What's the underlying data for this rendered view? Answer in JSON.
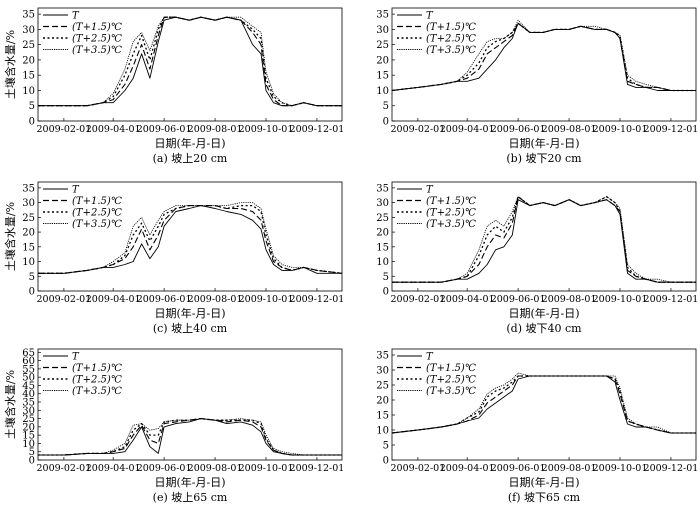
{
  "figure": {
    "panels": [
      {
        "id": "a",
        "caption": "(a) 坡上20 cm"
      },
      {
        "id": "b",
        "caption": "(b) 坡下20 cm"
      },
      {
        "id": "c",
        "caption": "(c) 坡上40 cm"
      },
      {
        "id": "d",
        "caption": "(d) 坡下40 cm"
      },
      {
        "id": "e",
        "caption": "(e) 坡上65 cm"
      },
      {
        "id": "f",
        "caption": "(f) 坡下65 cm"
      }
    ]
  },
  "colors": {
    "line": "#000000",
    "background": "#ffffff"
  },
  "chart_data": [
    {
      "type": "line",
      "caption": "(a) 坡上20 cm",
      "xlabel": "日期(年-月-日)",
      "ylabel": "土壤含水量/%",
      "x_ticks": [
        "2009-02-01",
        "2009-04-01",
        "2009-06-01",
        "2009-08-01",
        "2009-10-01",
        "2009-12-01"
      ],
      "y_ticks": [
        0,
        5,
        10,
        15,
        20,
        25,
        30,
        35
      ],
      "xlim": [
        "2009-01-01",
        "2009-12-31"
      ],
      "ylim": [
        0,
        37
      ],
      "grid": false,
      "legend_position": "top-left",
      "x": [
        "2009-01-01",
        "2009-02-01",
        "2009-03-01",
        "2009-03-20",
        "2009-04-01",
        "2009-04-15",
        "2009-04-25",
        "2009-05-05",
        "2009-05-15",
        "2009-05-25",
        "2009-06-01",
        "2009-06-15",
        "2009-07-01",
        "2009-07-15",
        "2009-08-01",
        "2009-08-15",
        "2009-09-01",
        "2009-09-15",
        "2009-09-25",
        "2009-10-01",
        "2009-10-10",
        "2009-10-20",
        "2009-11-01",
        "2009-11-15",
        "2009-12-01",
        "2009-12-31"
      ],
      "series": [
        {
          "name": "T",
          "values": [
            5,
            5,
            5,
            6,
            6,
            10,
            14,
            22,
            14,
            26,
            33,
            34,
            33,
            34,
            33,
            34,
            33,
            25,
            22,
            10,
            6,
            5,
            5,
            6,
            5,
            5
          ]
        },
        {
          "name": "(T+1.5)℃",
          "values": [
            5,
            5,
            5,
            6,
            7,
            12,
            18,
            25,
            17,
            28,
            34,
            34,
            33,
            34,
            33,
            34,
            33,
            29,
            25,
            12,
            7,
            5,
            5,
            6,
            5,
            5
          ]
        },
        {
          "name": "(T+2.5)℃",
          "values": [
            5,
            5,
            5,
            6,
            8,
            15,
            22,
            28,
            20,
            30,
            34,
            34,
            33,
            34,
            33,
            34,
            33,
            30,
            27,
            14,
            8,
            6,
            5,
            6,
            5,
            5
          ]
        },
        {
          "name": "(T+3.5)℃",
          "values": [
            5,
            5,
            5,
            6,
            9,
            17,
            26,
            29,
            23,
            31,
            34,
            34,
            33,
            34,
            33,
            34,
            34,
            31,
            29,
            16,
            9,
            6,
            5,
            6,
            5,
            5
          ]
        }
      ]
    },
    {
      "type": "line",
      "caption": "(b) 坡下20 cm",
      "xlabel": "日期(年-月-日)",
      "ylabel": "",
      "x_ticks": [
        "2009-02-01",
        "2009-04-01",
        "2009-06-01",
        "2009-08-01",
        "2009-10-01",
        "2009-12-01"
      ],
      "y_ticks": [
        0,
        5,
        10,
        15,
        20,
        25,
        30,
        35
      ],
      "xlim": [
        "2009-01-01",
        "2009-12-31"
      ],
      "ylim": [
        0,
        37
      ],
      "grid": false,
      "legend_position": "top-left",
      "x": [
        "2009-01-01",
        "2009-02-01",
        "2009-03-01",
        "2009-03-20",
        "2009-04-01",
        "2009-04-15",
        "2009-04-25",
        "2009-05-05",
        "2009-05-15",
        "2009-05-25",
        "2009-06-01",
        "2009-06-15",
        "2009-07-01",
        "2009-07-15",
        "2009-08-01",
        "2009-08-15",
        "2009-09-01",
        "2009-09-15",
        "2009-09-25",
        "2009-10-01",
        "2009-10-10",
        "2009-10-20",
        "2009-11-01",
        "2009-11-15",
        "2009-12-01",
        "2009-12-31"
      ],
      "series": [
        {
          "name": "T",
          "values": [
            10,
            11,
            12,
            13,
            13,
            14,
            17,
            20,
            24,
            27,
            32,
            29,
            29,
            30,
            30,
            31,
            30,
            30,
            29,
            27,
            12,
            11,
            11,
            10,
            10,
            10
          ]
        },
        {
          "name": "(T+1.5)℃",
          "values": [
            10,
            11,
            12,
            13,
            14,
            17,
            22,
            24,
            26,
            28,
            32,
            29,
            29,
            30,
            30,
            31,
            30,
            30,
            29,
            27,
            13,
            12,
            11,
            11,
            10,
            10
          ]
        },
        {
          "name": "(T+2.5)℃",
          "values": [
            10,
            11,
            12,
            13,
            15,
            19,
            24,
            26,
            27,
            29,
            32,
            29,
            29,
            30,
            30,
            31,
            30,
            30,
            29,
            28,
            14,
            12,
            11,
            11,
            10,
            10
          ]
        },
        {
          "name": "(T+3.5)℃",
          "values": [
            10,
            11,
            12,
            13,
            16,
            22,
            26,
            27,
            27,
            29,
            33,
            29,
            29,
            30,
            30,
            31,
            31,
            30,
            29,
            28,
            15,
            13,
            12,
            11,
            10,
            10
          ]
        }
      ]
    },
    {
      "type": "line",
      "caption": "(c) 坡上40 cm",
      "xlabel": "日期(年-月-日)",
      "ylabel": "土壤含水量/%",
      "x_ticks": [
        "2009-02-01",
        "2009-04-01",
        "2009-06-01",
        "2009-08-01",
        "2009-10-01",
        "2009-12-01"
      ],
      "y_ticks": [
        0,
        5,
        10,
        15,
        20,
        25,
        30,
        35
      ],
      "xlim": [
        "2009-01-01",
        "2009-12-31"
      ],
      "ylim": [
        0,
        37
      ],
      "grid": false,
      "legend_position": "top-left",
      "x": [
        "2009-01-01",
        "2009-02-01",
        "2009-03-01",
        "2009-03-20",
        "2009-04-01",
        "2009-04-15",
        "2009-04-25",
        "2009-05-05",
        "2009-05-15",
        "2009-05-25",
        "2009-06-01",
        "2009-06-15",
        "2009-07-01",
        "2009-07-15",
        "2009-08-01",
        "2009-08-15",
        "2009-09-01",
        "2009-09-15",
        "2009-09-25",
        "2009-10-01",
        "2009-10-10",
        "2009-10-20",
        "2009-11-01",
        "2009-11-15",
        "2009-12-01",
        "2009-12-31"
      ],
      "series": [
        {
          "name": "T",
          "values": [
            6,
            6,
            7,
            8,
            8,
            9,
            10,
            16,
            11,
            15,
            22,
            27,
            28,
            29,
            28,
            27,
            26,
            24,
            21,
            14,
            9,
            7,
            7,
            8,
            6,
            6
          ]
        },
        {
          "name": "(T+1.5)℃",
          "values": [
            6,
            6,
            7,
            8,
            9,
            11,
            15,
            21,
            14,
            19,
            24,
            28,
            29,
            29,
            29,
            28,
            28,
            27,
            24,
            17,
            10,
            8,
            7,
            8,
            7,
            6
          ]
        },
        {
          "name": "(T+2.5)℃",
          "values": [
            6,
            6,
            7,
            8,
            9,
            12,
            19,
            23,
            17,
            22,
            26,
            28,
            29,
            29,
            29,
            28,
            29,
            29,
            27,
            19,
            11,
            8,
            7,
            8,
            7,
            6
          ]
        },
        {
          "name": "(T+3.5)℃",
          "values": [
            6,
            6,
            7,
            8,
            10,
            13,
            22,
            25,
            19,
            24,
            27,
            29,
            29,
            29,
            29,
            29,
            30,
            30,
            28,
            21,
            12,
            9,
            8,
            8,
            7,
            6
          ]
        }
      ]
    },
    {
      "type": "line",
      "caption": "(d) 坡下40 cm",
      "xlabel": "日期(年-月-日)",
      "ylabel": "",
      "x_ticks": [
        "2009-02-01",
        "2009-04-01",
        "2009-06-01",
        "2009-08-01",
        "2009-10-01",
        "2009-12-01"
      ],
      "y_ticks": [
        0,
        5,
        10,
        15,
        20,
        25,
        30,
        35
      ],
      "xlim": [
        "2009-01-01",
        "2009-12-31"
      ],
      "ylim": [
        0,
        37
      ],
      "grid": false,
      "legend_position": "top-left",
      "x": [
        "2009-01-01",
        "2009-02-01",
        "2009-03-01",
        "2009-03-20",
        "2009-04-01",
        "2009-04-15",
        "2009-04-25",
        "2009-05-05",
        "2009-05-15",
        "2009-05-25",
        "2009-06-01",
        "2009-06-15",
        "2009-07-01",
        "2009-07-15",
        "2009-08-01",
        "2009-08-15",
        "2009-09-01",
        "2009-09-15",
        "2009-09-25",
        "2009-10-01",
        "2009-10-10",
        "2009-10-20",
        "2009-11-01",
        "2009-11-15",
        "2009-12-01",
        "2009-12-31"
      ],
      "series": [
        {
          "name": "T",
          "values": [
            3,
            3,
            3,
            4,
            4,
            6,
            9,
            14,
            15,
            19,
            31,
            29,
            30,
            29,
            31,
            29,
            30,
            31,
            29,
            26,
            6,
            4,
            4,
            3,
            3,
            3
          ]
        },
        {
          "name": "(T+1.5)℃",
          "values": [
            3,
            3,
            3,
            4,
            5,
            9,
            15,
            19,
            18,
            23,
            32,
            29,
            30,
            29,
            31,
            29,
            30,
            31,
            29,
            27,
            7,
            5,
            4,
            3,
            3,
            3
          ]
        },
        {
          "name": "(T+2.5)℃",
          "values": [
            3,
            3,
            3,
            4,
            5,
            12,
            19,
            22,
            20,
            25,
            32,
            29,
            30,
            29,
            31,
            29,
            30,
            32,
            30,
            27,
            8,
            5,
            4,
            3,
            3,
            3
          ]
        },
        {
          "name": "(T+3.5)℃",
          "values": [
            3,
            3,
            3,
            4,
            6,
            14,
            22,
            24,
            22,
            27,
            32,
            29,
            30,
            29,
            31,
            29,
            30,
            32,
            30,
            28,
            9,
            6,
            4,
            4,
            3,
            3
          ]
        }
      ]
    },
    {
      "type": "line",
      "caption": "(e) 坡上65 cm",
      "xlabel": "日期(年-月-日)",
      "ylabel": "土壤含水量/%",
      "x_ticks": [
        "2009-02-01",
        "2009-04-01",
        "2009-06-01",
        "2009-08-01",
        "2009-10-01",
        "2009-12-01"
      ],
      "y_ticks": [
        0,
        5,
        10,
        15,
        20,
        25,
        30,
        35,
        40,
        45,
        50,
        55,
        60,
        65
      ],
      "xlim": [
        "2009-01-01",
        "2009-12-31"
      ],
      "ylim": [
        0,
        67
      ],
      "grid": false,
      "legend_position": "top-left",
      "x": [
        "2009-01-01",
        "2009-02-01",
        "2009-03-01",
        "2009-03-20",
        "2009-04-01",
        "2009-04-15",
        "2009-04-25",
        "2009-05-05",
        "2009-05-15",
        "2009-05-25",
        "2009-06-01",
        "2009-06-15",
        "2009-07-01",
        "2009-07-15",
        "2009-08-01",
        "2009-08-15",
        "2009-09-01",
        "2009-09-15",
        "2009-09-25",
        "2009-10-01",
        "2009-10-10",
        "2009-10-20",
        "2009-11-01",
        "2009-11-15",
        "2009-12-01",
        "2009-12-31"
      ],
      "series": [
        {
          "name": "T",
          "values": [
            3,
            3,
            4,
            4,
            4,
            5,
            12,
            20,
            8,
            4,
            20,
            22,
            23,
            25,
            24,
            22,
            23,
            21,
            17,
            10,
            5,
            4,
            3,
            3,
            3,
            3
          ]
        },
        {
          "name": "(T+1.5)℃",
          "values": [
            3,
            3,
            4,
            4,
            5,
            7,
            15,
            21,
            12,
            10,
            22,
            23,
            24,
            25,
            24,
            23,
            24,
            23,
            20,
            12,
            6,
            4,
            3,
            3,
            3,
            3
          ]
        },
        {
          "name": "(T+2.5)℃",
          "values": [
            3,
            3,
            4,
            4,
            5,
            8,
            18,
            22,
            15,
            15,
            23,
            24,
            24,
            25,
            24,
            24,
            24,
            24,
            22,
            13,
            6,
            4,
            3,
            3,
            3,
            3
          ]
        },
        {
          "name": "(T+3.5)℃",
          "values": [
            3,
            3,
            4,
            4,
            6,
            10,
            21,
            22,
            18,
            19,
            23,
            24,
            24,
            25,
            24,
            24,
            25,
            24,
            23,
            15,
            7,
            5,
            4,
            3,
            3,
            3
          ]
        }
      ]
    },
    {
      "type": "line",
      "caption": "(f) 坡下65 cm",
      "xlabel": "日期(年-月-日)",
      "ylabel": "",
      "x_ticks": [
        "2009-02-01",
        "2009-04-01",
        "2009-06-01",
        "2009-08-01",
        "2009-10-01",
        "2009-12-01"
      ],
      "y_ticks": [
        0,
        5,
        10,
        15,
        20,
        25,
        30,
        35
      ],
      "xlim": [
        "2009-01-01",
        "2009-12-31"
      ],
      "ylim": [
        0,
        37
      ],
      "grid": false,
      "legend_position": "top-left",
      "x": [
        "2009-01-01",
        "2009-02-01",
        "2009-03-01",
        "2009-03-20",
        "2009-04-01",
        "2009-04-15",
        "2009-04-25",
        "2009-05-05",
        "2009-05-15",
        "2009-05-25",
        "2009-06-01",
        "2009-06-15",
        "2009-07-01",
        "2009-07-15",
        "2009-08-01",
        "2009-08-15",
        "2009-09-01",
        "2009-09-15",
        "2009-09-25",
        "2009-10-01",
        "2009-10-10",
        "2009-10-20",
        "2009-11-01",
        "2009-11-15",
        "2009-12-01",
        "2009-12-31"
      ],
      "series": [
        {
          "name": "T",
          "values": [
            9,
            10,
            11,
            12,
            13,
            14,
            17,
            19,
            21,
            23,
            27,
            28,
            28,
            28,
            28,
            28,
            28,
            28,
            26,
            20,
            12,
            11,
            11,
            10,
            9,
            9
          ]
        },
        {
          "name": "(T+1.5)℃",
          "values": [
            9,
            10,
            11,
            12,
            13,
            15,
            19,
            21,
            23,
            25,
            28,
            28,
            28,
            28,
            28,
            28,
            28,
            28,
            27,
            22,
            13,
            12,
            11,
            10,
            9,
            9
          ]
        },
        {
          "name": "(T+2.5)℃",
          "values": [
            9,
            10,
            11,
            12,
            14,
            16,
            21,
            23,
            24,
            26,
            28,
            28,
            28,
            28,
            28,
            28,
            28,
            28,
            27,
            23,
            13,
            12,
            11,
            10,
            9,
            9
          ]
        },
        {
          "name": "(T+3.5)℃",
          "values": [
            9,
            10,
            11,
            12,
            14,
            17,
            22,
            24,
            25,
            27,
            29,
            28,
            28,
            28,
            28,
            28,
            28,
            28,
            28,
            24,
            14,
            12,
            11,
            11,
            9,
            9
          ]
        }
      ]
    }
  ]
}
